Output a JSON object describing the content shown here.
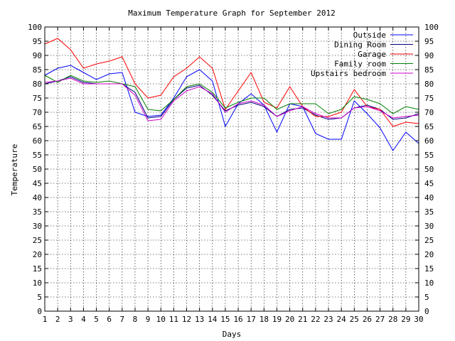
{
  "chart_data": {
    "type": "line",
    "title": "Maximum Temperature Graph for September 2012",
    "xlabel": "Days",
    "ylabel": "Temperature",
    "xlim": [
      1,
      30
    ],
    "ylim": [
      0,
      100
    ],
    "x_ticks": [
      1,
      2,
      3,
      4,
      5,
      6,
      7,
      8,
      9,
      10,
      11,
      12,
      13,
      14,
      15,
      16,
      17,
      18,
      19,
      20,
      21,
      22,
      23,
      24,
      25,
      26,
      27,
      28,
      29,
      30
    ],
    "y_ticks": [
      0,
      5,
      10,
      15,
      20,
      25,
      30,
      35,
      40,
      45,
      50,
      55,
      60,
      65,
      70,
      75,
      80,
      85,
      90,
      95,
      100
    ],
    "grid": true,
    "mirror_y_axis": true,
    "legend_position": "top-right",
    "x": [
      1,
      2,
      3,
      4,
      5,
      6,
      7,
      8,
      9,
      10,
      11,
      12,
      13,
      14,
      15,
      16,
      17,
      18,
      19,
      20,
      21,
      22,
      23,
      24,
      25,
      26,
      27,
      28,
      29,
      30
    ],
    "series": [
      {
        "name": "Outside",
        "color": "#0000ff",
        "values": [
          83,
          85.5,
          86.5,
          84,
          81.5,
          83.5,
          84,
          70,
          68.5,
          69,
          75,
          82.5,
          85,
          81,
          65,
          73,
          76.5,
          72.5,
          63,
          73,
          72,
          62.5,
          60.5,
          60.5,
          74,
          69.5,
          64.5,
          56.5,
          63,
          59
        ]
      },
      {
        "name": "Dining Room",
        "color": "#000080",
        "values": [
          80,
          81,
          82.5,
          80.5,
          80,
          80,
          80,
          77,
          68,
          68.5,
          74.5,
          78.5,
          79.5,
          76,
          70.5,
          72.5,
          73.5,
          72,
          68.5,
          71,
          71.5,
          69,
          67.5,
          68,
          71.5,
          72.5,
          71,
          67.5,
          68,
          69.5
        ]
      },
      {
        "name": "Garage",
        "color": "#ff0000",
        "values": [
          94,
          96,
          92,
          85.5,
          87,
          88,
          89.5,
          80,
          75,
          76,
          82.5,
          85.5,
          89.5,
          85.5,
          71,
          77.5,
          84,
          73.5,
          71.5,
          79,
          72,
          68.5,
          68.5,
          70,
          78,
          72,
          71,
          65,
          66.5,
          66
        ]
      },
      {
        "name": "Family room",
        "color": "#008000",
        "values": [
          83,
          80.5,
          83,
          81,
          80.5,
          81,
          80,
          79,
          71,
          70.5,
          74.5,
          79,
          80,
          77,
          71.5,
          73.5,
          75,
          75,
          71,
          73,
          73,
          73,
          69.5,
          71,
          75.5,
          74.5,
          73,
          69.5,
          72,
          71
        ]
      },
      {
        "name": "Upstairs bedroom",
        "color": "#cc00cc",
        "values": [
          80.5,
          81,
          82,
          80,
          80,
          80,
          80,
          76,
          67,
          67.5,
          74,
          77.5,
          79,
          76.5,
          70,
          73,
          74,
          72.5,
          68.5,
          70.5,
          72,
          69.5,
          68,
          68,
          71.5,
          72,
          70.5,
          68,
          68.5,
          69
        ]
      }
    ]
  }
}
